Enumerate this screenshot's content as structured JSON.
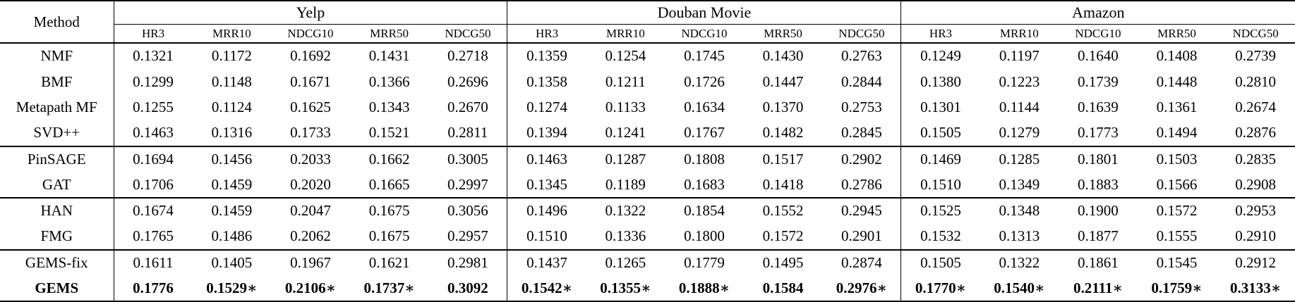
{
  "table": {
    "method_header": "Method",
    "datasets": [
      "Yelp",
      "Douban Movie",
      "Amazon"
    ],
    "metrics": [
      "HR3",
      "MRR10",
      "NDCG10",
      "MRR50",
      "NDCG50"
    ],
    "rows": [
      {
        "method": "NMF",
        "bold": false,
        "group_end": false,
        "values": [
          "0.1321",
          "0.1172",
          "0.1692",
          "0.1431",
          "0.2718",
          "0.1359",
          "0.1254",
          "0.1745",
          "0.1430",
          "0.2763",
          "0.1249",
          "0.1197",
          "0.1640",
          "0.1408",
          "0.2739"
        ]
      },
      {
        "method": "BMF",
        "bold": false,
        "group_end": false,
        "values": [
          "0.1299",
          "0.1148",
          "0.1671",
          "0.1366",
          "0.2696",
          "0.1358",
          "0.1211",
          "0.1726",
          "0.1447",
          "0.2844",
          "0.1380",
          "0.1223",
          "0.1739",
          "0.1448",
          "0.2810"
        ]
      },
      {
        "method": "Metapath MF",
        "bold": false,
        "group_end": false,
        "values": [
          "0.1255",
          "0.1124",
          "0.1625",
          "0.1343",
          "0.2670",
          "0.1274",
          "0.1133",
          "0.1634",
          "0.1370",
          "0.2753",
          "0.1301",
          "0.1144",
          "0.1639",
          "0.1361",
          "0.2674"
        ]
      },
      {
        "method": "SVD++",
        "bold": false,
        "group_end": true,
        "values": [
          "0.1463",
          "0.1316",
          "0.1733",
          "0.1521",
          "0.2811",
          "0.1394",
          "0.1241",
          "0.1767",
          "0.1482",
          "0.2845",
          "0.1505",
          "0.1279",
          "0.1773",
          "0.1494",
          "0.2876"
        ]
      },
      {
        "method": "PinSAGE",
        "bold": false,
        "group_end": false,
        "values": [
          "0.1694",
          "0.1456",
          "0.2033",
          "0.1662",
          "0.3005",
          "0.1463",
          "0.1287",
          "0.1808",
          "0.1517",
          "0.2902",
          "0.1469",
          "0.1285",
          "0.1801",
          "0.1503",
          "0.2835"
        ]
      },
      {
        "method": "GAT",
        "bold": false,
        "group_end": true,
        "values": [
          "0.1706",
          "0.1459",
          "0.2020",
          "0.1665",
          "0.2997",
          "0.1345",
          "0.1189",
          "0.1683",
          "0.1418",
          "0.2786",
          "0.1510",
          "0.1349",
          "0.1883",
          "0.1566",
          "0.2908"
        ]
      },
      {
        "method": "HAN",
        "bold": false,
        "group_end": false,
        "values": [
          "0.1674",
          "0.1459",
          "0.2047",
          "0.1675",
          "0.3056",
          "0.1496",
          "0.1322",
          "0.1854",
          "0.1552",
          "0.2945",
          "0.1525",
          "0.1348",
          "0.1900",
          "0.1572",
          "0.2953"
        ]
      },
      {
        "method": "FMG",
        "bold": false,
        "group_end": true,
        "values": [
          "0.1765",
          "0.1486",
          "0.2062",
          "0.1675",
          "0.2957",
          "0.1510",
          "0.1336",
          "0.1800",
          "0.1572",
          "0.2901",
          "0.1532",
          "0.1313",
          "0.1877",
          "0.1555",
          "0.2910"
        ]
      },
      {
        "method": "GEMS-fix",
        "bold": false,
        "group_end": false,
        "values": [
          "0.1611",
          "0.1405",
          "0.1967",
          "0.1621",
          "0.2981",
          "0.1437",
          "0.1265",
          "0.1779",
          "0.1495",
          "0.2874",
          "0.1505",
          "0.1322",
          "0.1861",
          "0.1545",
          "0.2912"
        ]
      },
      {
        "method": "GEMS",
        "bold": true,
        "group_end": false,
        "values": [
          "0.1776",
          "0.1529∗",
          "0.2106∗",
          "0.1737∗",
          "0.3092",
          "0.1542∗",
          "0.1355∗",
          "0.1888∗",
          "0.1584",
          "0.2976∗",
          "0.1770∗",
          "0.1540∗",
          "0.2111∗",
          "0.1759∗",
          "0.3133∗"
        ]
      }
    ]
  },
  "colors": {
    "text": "#000000",
    "background": "#ffffff",
    "rule": "#000000"
  }
}
